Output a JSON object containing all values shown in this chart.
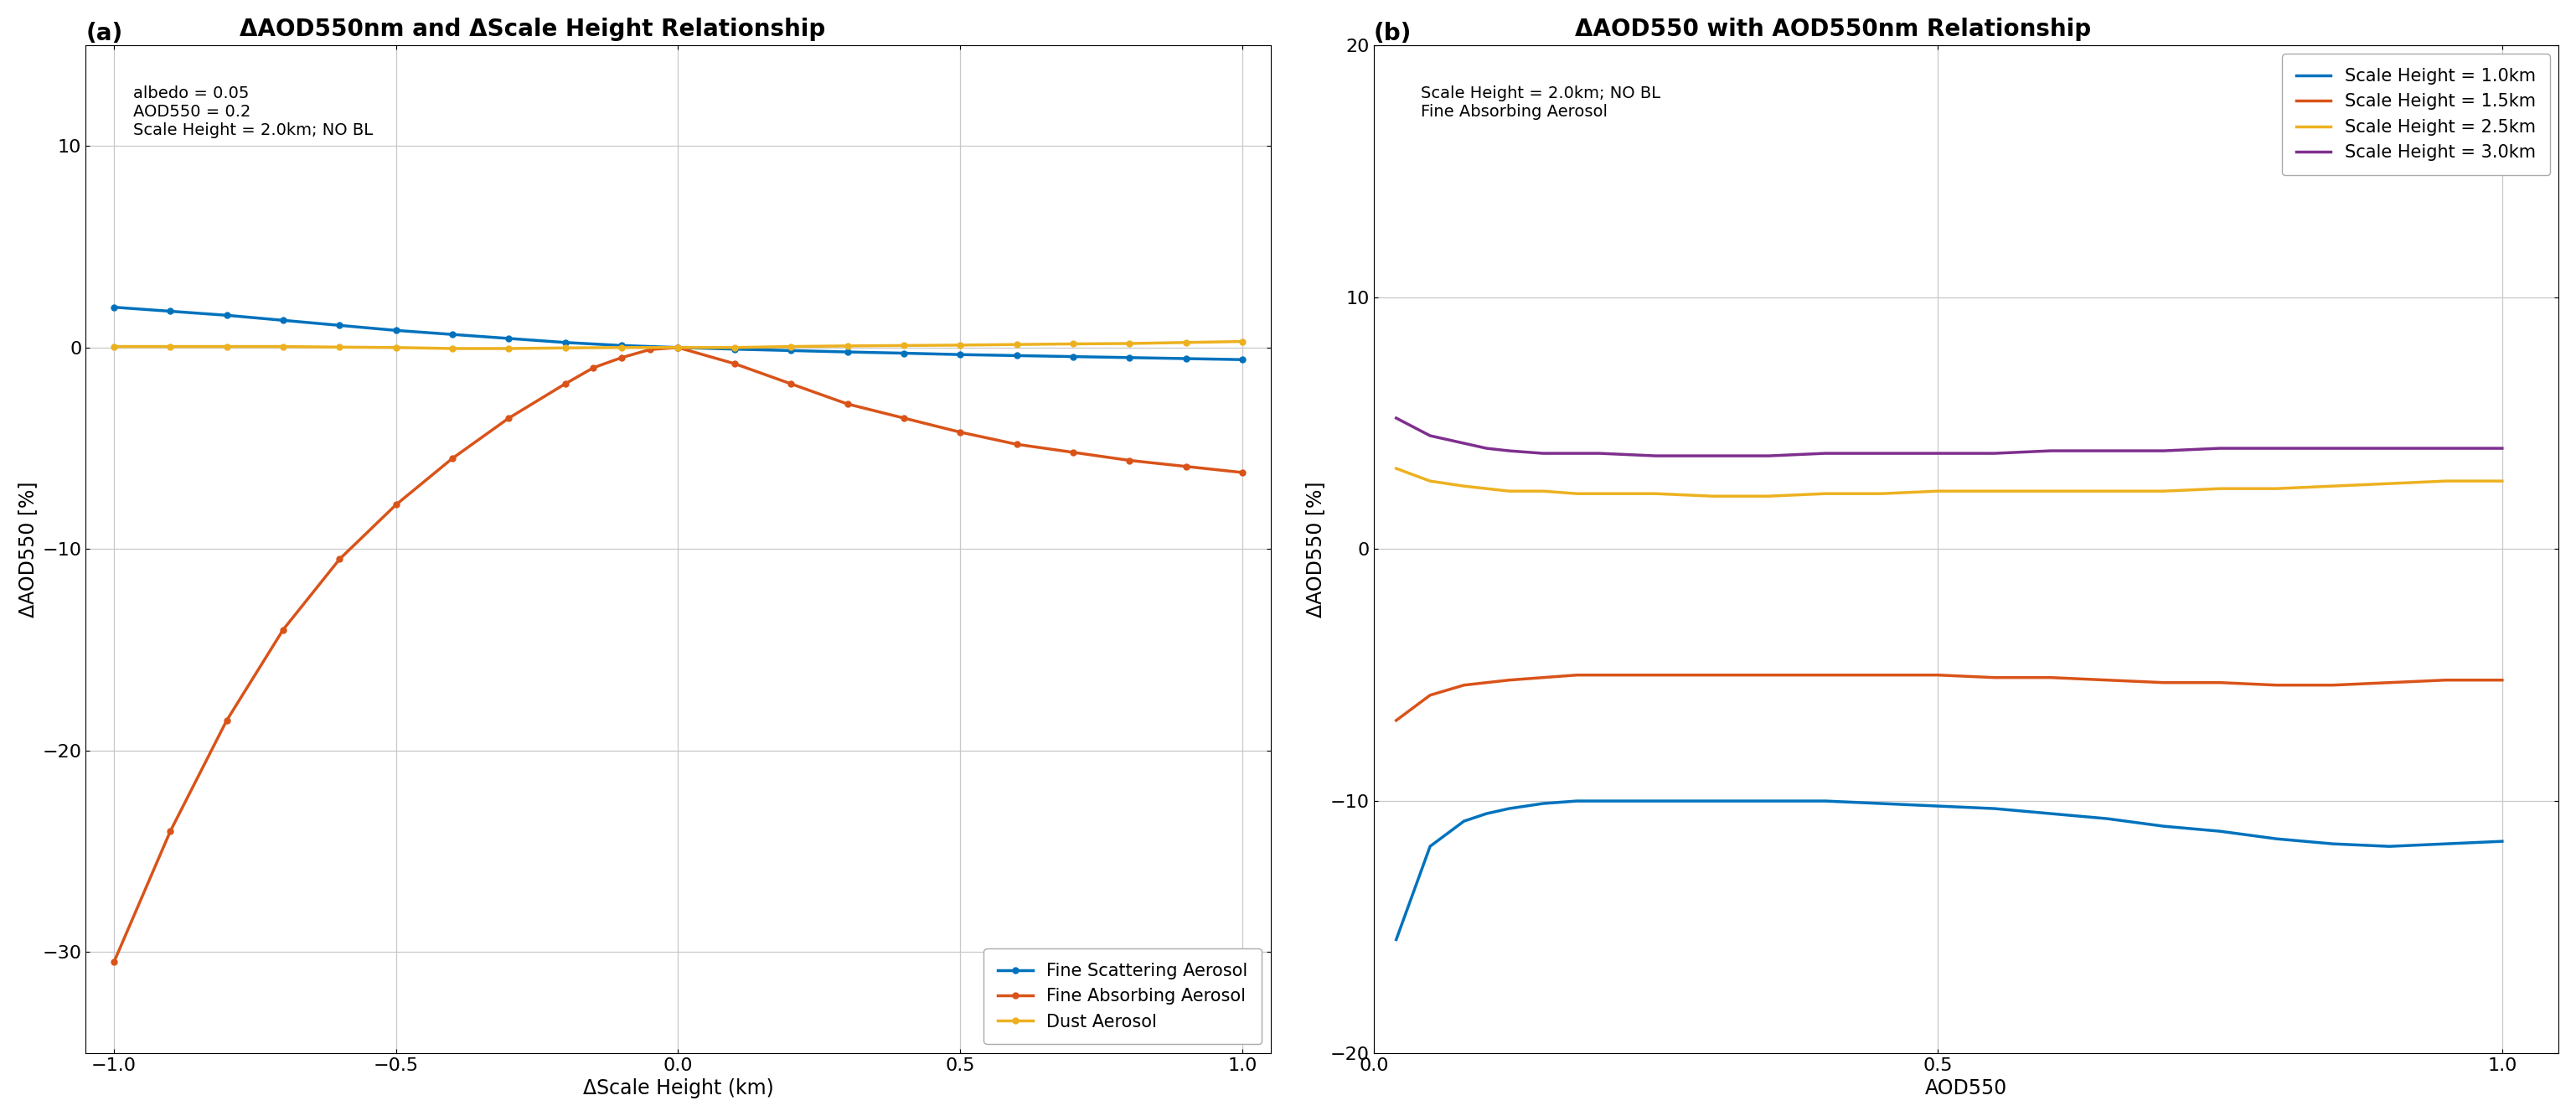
{
  "panel_a": {
    "title": "ΔAOD550nm and ΔScale Height Relationship",
    "xlabel": "ΔScale Height (km)",
    "ylabel": "ΔAOD550 [%]",
    "xlim": [
      -1.05,
      1.05
    ],
    "ylim": [
      -35,
      15
    ],
    "yticks": [
      -30,
      -20,
      -10,
      0,
      10
    ],
    "xticks": [
      -1.0,
      -0.5,
      0.0,
      0.5,
      1.0
    ],
    "annotation": "albedo = 0.05\nAOD550 = 0.2\nScale Height = 2.0km; NO BL",
    "lines": {
      "fine_scattering": {
        "color": "#0072BD",
        "label": "Fine Scattering Aerosol",
        "x": [
          -1.0,
          -0.9,
          -0.8,
          -0.7,
          -0.6,
          -0.5,
          -0.4,
          -0.3,
          -0.2,
          -0.1,
          0.0,
          0.1,
          0.2,
          0.3,
          0.4,
          0.5,
          0.6,
          0.7,
          0.8,
          0.9,
          1.0
        ],
        "y": [
          2.0,
          1.8,
          1.6,
          1.35,
          1.1,
          0.85,
          0.65,
          0.45,
          0.25,
          0.1,
          0.0,
          -0.08,
          -0.15,
          -0.22,
          -0.28,
          -0.35,
          -0.4,
          -0.45,
          -0.5,
          -0.55,
          -0.6
        ]
      },
      "fine_absorbing": {
        "color": "#D95319",
        "label": "Fine Absorbing Aerosol",
        "x": [
          -1.0,
          -0.9,
          -0.8,
          -0.7,
          -0.6,
          -0.5,
          -0.4,
          -0.3,
          -0.2,
          -0.15,
          -0.1,
          -0.05,
          0.0,
          0.1,
          0.2,
          0.3,
          0.4,
          0.5,
          0.6,
          0.7,
          0.8,
          0.9,
          1.0
        ],
        "y": [
          -30.5,
          -24.0,
          -18.5,
          -14.0,
          -10.5,
          -7.8,
          -5.5,
          -3.5,
          -1.8,
          -1.0,
          -0.5,
          -0.1,
          0.0,
          -0.8,
          -1.8,
          -2.8,
          -3.5,
          -4.2,
          -4.8,
          -5.2,
          -5.6,
          -5.9,
          -6.2
        ]
      },
      "dust": {
        "color": "#EDB120",
        "label": "Dust Aerosol",
        "x": [
          -1.0,
          -0.9,
          -0.8,
          -0.7,
          -0.6,
          -0.5,
          -0.4,
          -0.3,
          -0.2,
          -0.1,
          0.0,
          0.1,
          0.2,
          0.3,
          0.4,
          0.5,
          0.6,
          0.7,
          0.8,
          0.9,
          1.0
        ],
        "y": [
          0.05,
          0.05,
          0.05,
          0.05,
          0.02,
          0.0,
          -0.05,
          -0.05,
          -0.02,
          0.0,
          0.0,
          0.0,
          0.05,
          0.08,
          0.1,
          0.12,
          0.15,
          0.18,
          0.2,
          0.25,
          0.3
        ]
      }
    }
  },
  "panel_b": {
    "title": "ΔAOD550 with AOD550nm Relationship",
    "xlabel": "AOD550",
    "ylabel": "ΔAOD550 [%]",
    "xlim": [
      0.0,
      1.05
    ],
    "ylim": [
      -20,
      20
    ],
    "yticks": [
      -20,
      -10,
      0,
      10,
      20
    ],
    "xticks": [
      0.0,
      0.5,
      1.0
    ],
    "annotation": "Scale Height = 2.0km; NO BL\nFine Absorbing Aerosol",
    "lines": {
      "sh_1p0": {
        "color": "#0072BD",
        "label": "Scale Height = 1.0km",
        "x": [
          0.02,
          0.05,
          0.08,
          0.1,
          0.12,
          0.15,
          0.18,
          0.2,
          0.25,
          0.3,
          0.35,
          0.4,
          0.45,
          0.5,
          0.55,
          0.6,
          0.65,
          0.7,
          0.75,
          0.8,
          0.85,
          0.9,
          0.95,
          1.0
        ],
        "y": [
          -15.5,
          -11.8,
          -10.8,
          -10.5,
          -10.3,
          -10.1,
          -10.0,
          -10.0,
          -10.0,
          -10.0,
          -10.0,
          -10.0,
          -10.1,
          -10.2,
          -10.3,
          -10.5,
          -10.7,
          -11.0,
          -11.2,
          -11.5,
          -11.7,
          -11.8,
          -11.7,
          -11.6
        ]
      },
      "sh_1p5": {
        "color": "#D95319",
        "label": "Scale Height = 1.5km",
        "x": [
          0.02,
          0.05,
          0.08,
          0.1,
          0.12,
          0.15,
          0.18,
          0.2,
          0.25,
          0.3,
          0.35,
          0.4,
          0.45,
          0.5,
          0.55,
          0.6,
          0.65,
          0.7,
          0.75,
          0.8,
          0.85,
          0.9,
          0.95,
          1.0
        ],
        "y": [
          -6.8,
          -5.8,
          -5.4,
          -5.3,
          -5.2,
          -5.1,
          -5.0,
          -5.0,
          -5.0,
          -5.0,
          -5.0,
          -5.0,
          -5.0,
          -5.0,
          -5.1,
          -5.1,
          -5.2,
          -5.3,
          -5.3,
          -5.4,
          -5.4,
          -5.3,
          -5.2,
          -5.2
        ]
      },
      "sh_2p5": {
        "color": "#EDB120",
        "label": "Scale Height = 2.5km",
        "x": [
          0.02,
          0.05,
          0.08,
          0.1,
          0.12,
          0.15,
          0.18,
          0.2,
          0.25,
          0.3,
          0.35,
          0.4,
          0.45,
          0.5,
          0.55,
          0.6,
          0.65,
          0.7,
          0.75,
          0.8,
          0.85,
          0.9,
          0.95,
          1.0
        ],
        "y": [
          3.2,
          2.7,
          2.5,
          2.4,
          2.3,
          2.3,
          2.2,
          2.2,
          2.2,
          2.1,
          2.1,
          2.2,
          2.2,
          2.3,
          2.3,
          2.3,
          2.3,
          2.3,
          2.4,
          2.4,
          2.5,
          2.6,
          2.7,
          2.7
        ]
      },
      "sh_3p0": {
        "color": "#7E2F8E",
        "label": "Scale Height = 3.0km",
        "x": [
          0.02,
          0.05,
          0.08,
          0.1,
          0.12,
          0.15,
          0.18,
          0.2,
          0.25,
          0.3,
          0.35,
          0.4,
          0.45,
          0.5,
          0.55,
          0.6,
          0.65,
          0.7,
          0.75,
          0.8,
          0.85,
          0.9,
          0.95,
          1.0
        ],
        "y": [
          5.2,
          4.5,
          4.2,
          4.0,
          3.9,
          3.8,
          3.8,
          3.8,
          3.7,
          3.7,
          3.7,
          3.8,
          3.8,
          3.8,
          3.8,
          3.9,
          3.9,
          3.9,
          4.0,
          4.0,
          4.0,
          4.0,
          4.0,
          4.0
        ]
      }
    }
  },
  "background_color": "#ffffff",
  "grid_color": "#c8c8c8",
  "title_fontsize": 20,
  "label_fontsize": 17,
  "tick_fontsize": 16,
  "legend_fontsize": 15,
  "annotation_fontsize": 14,
  "panel_label_fontsize": 20
}
